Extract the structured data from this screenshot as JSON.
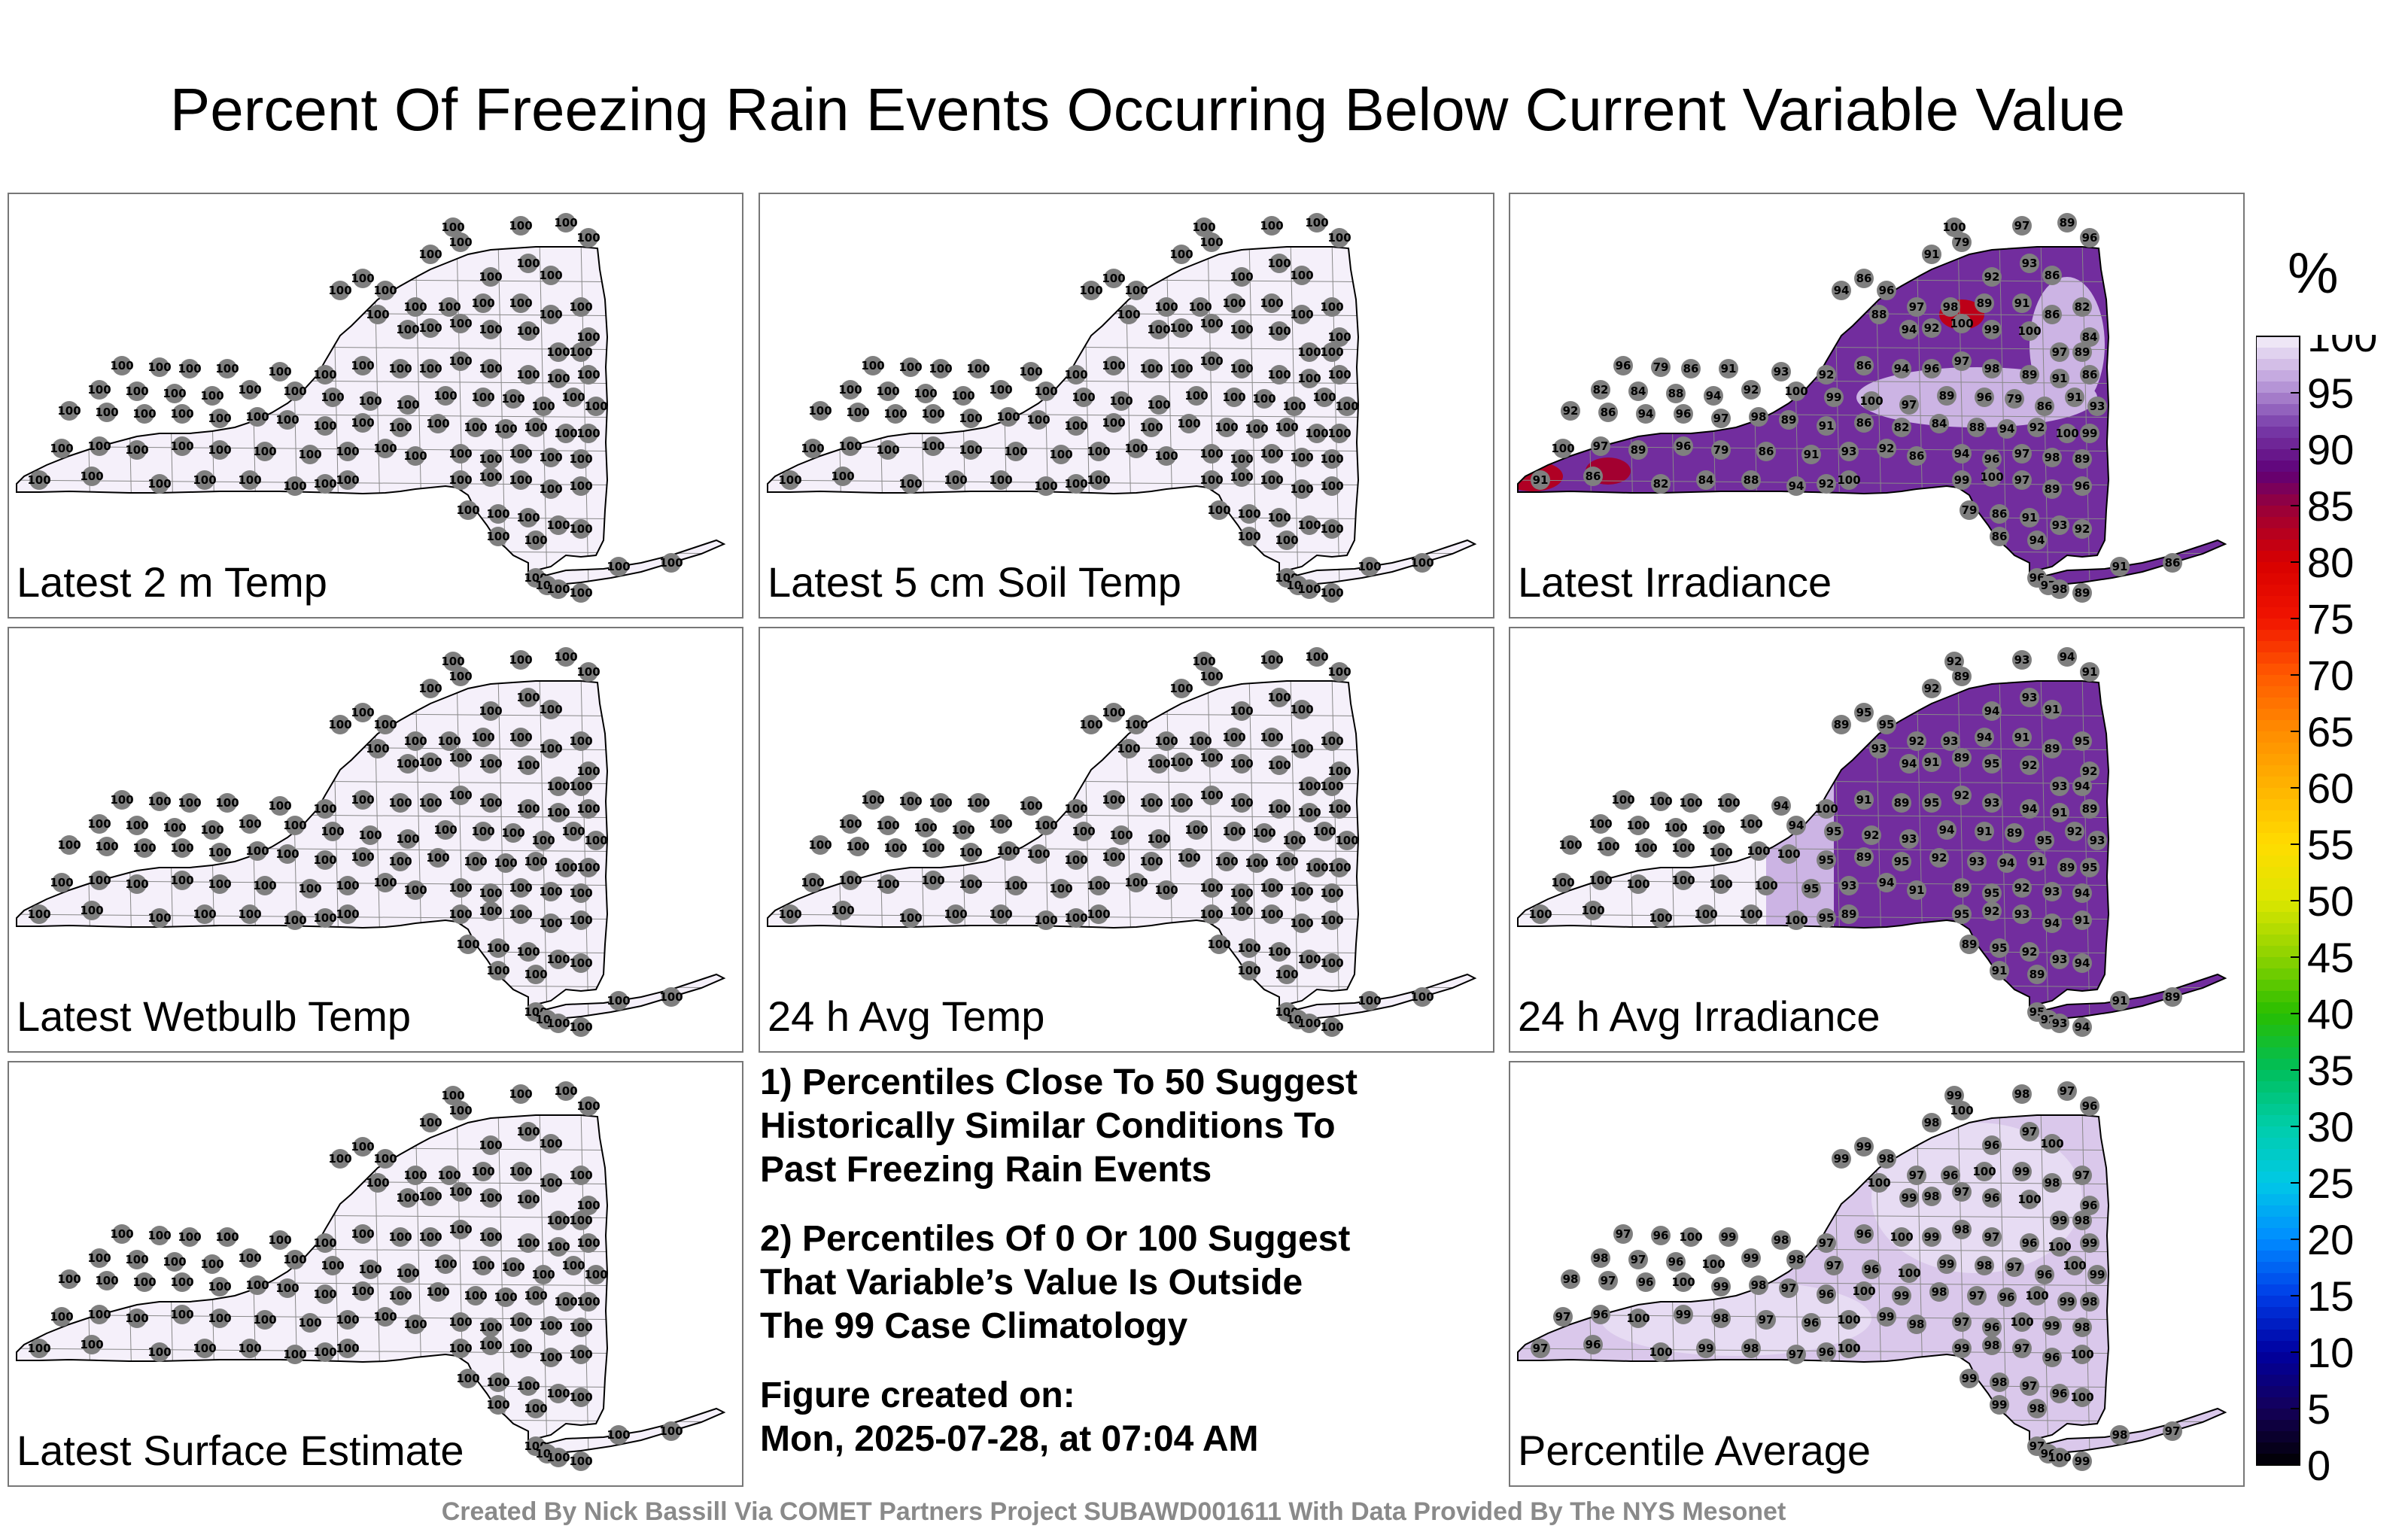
{
  "title": "Percent Of Freezing Rain Events Occurring Below Current Variable Value",
  "panels": [
    {
      "label": "Latest 2 m Temp",
      "field": "uniform100"
    },
    {
      "label": "Latest 5 cm Soil Temp",
      "field": "uniform100"
    },
    {
      "label": "Latest Irradiance",
      "field": "irradiance"
    },
    {
      "label": "Latest Wetbulb Temp",
      "field": "uniform100"
    },
    {
      "label": "24 h Avg Temp",
      "field": "uniform100"
    },
    {
      "label": "24 h Avg Irradiance",
      "field": "avg_irradiance"
    },
    {
      "label": "Latest Surface Estimate",
      "field": "uniform100"
    },
    {
      "label": "Percentile Average",
      "field": "average"
    }
  ],
  "notes": {
    "note1": "1) Percentiles Close To 50 Suggest\nHistorically Similar Conditions To\nPast Freezing Rain Events",
    "note2": "2) Percentiles Of 0 Or 100 Suggest\nThat Variable’s Value Is Outside\nThe 99 Case Climatology",
    "created_label": "Figure created on:",
    "created_value": "Mon, 2025-07-28, at 07:04 AM"
  },
  "colorbar": {
    "unit": "%",
    "ticks": [
      "100",
      "95",
      "90",
      "85",
      "80",
      "75",
      "70",
      "65",
      "60",
      "55",
      "50",
      "45",
      "40",
      "35",
      "30",
      "25",
      "20",
      "15",
      "10",
      "5",
      "0"
    ]
  },
  "credit": "Created By Nick Bassill Via COMET Partners Project SUBAWD001611 With Data Provided By The NYS Mesonet",
  "chart_data": [
    {
      "type": "heatmap",
      "title": "Latest 2 m Temp",
      "uniform_value": 100,
      "station_values": [
        100
      ]
    },
    {
      "type": "heatmap",
      "title": "Latest 5 cm Soil Temp",
      "uniform_value": 100,
      "station_values": [
        100
      ]
    },
    {
      "type": "heatmap",
      "title": "Latest Irradiance",
      "station_values": [
        100,
        97,
        89,
        96,
        79,
        86,
        91,
        93,
        92,
        86,
        94,
        96,
        97,
        98,
        89,
        91,
        86,
        82,
        84,
        88,
        94,
        92,
        100,
        99
      ]
    },
    {
      "type": "heatmap",
      "title": "Latest Wetbulb Temp",
      "uniform_value": 100,
      "station_values": [
        100
      ]
    },
    {
      "type": "heatmap",
      "title": "24 h Avg Temp",
      "uniform_value": 100,
      "station_values": [
        100
      ]
    },
    {
      "type": "heatmap",
      "title": "24 h Avg Irradiance",
      "station_values": [
        92,
        93,
        94,
        91,
        89,
        95,
        97,
        98,
        99,
        100
      ]
    },
    {
      "type": "heatmap",
      "title": "Latest Surface Estimate",
      "uniform_value": 100,
      "station_values": [
        100
      ]
    },
    {
      "type": "heatmap",
      "title": "Percentile Average",
      "station_values": [
        99,
        98,
        97,
        96,
        100
      ]
    }
  ],
  "colors": {
    "state_fill_high": "#efe9f4",
    "irradiance_dark": "#6a2c9c",
    "irradiance_low": "#a0125a",
    "station_dot": "#7f7f7f"
  }
}
